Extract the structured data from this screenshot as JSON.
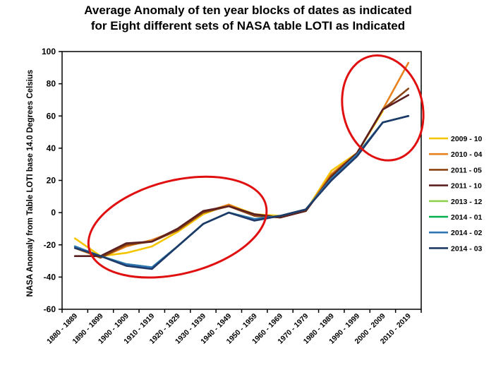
{
  "chart_data": {
    "type": "line",
    "title": [
      "Average Anomaly of ten year blocks of dates as indicated",
      "for Eight different sets of NASA table LOTI as Indicated"
    ],
    "xlabel": "",
    "ylabel": "NASA Anomaly from Table LOTI base 14.0 Degrees Celsius",
    "ylim": [
      -60,
      100
    ],
    "yticks": [
      -60,
      -40,
      -20,
      0,
      20,
      40,
      60,
      80,
      100
    ],
    "grid": false,
    "legend_position": "right",
    "categories": [
      "1880 - 1889",
      "1890 - 1899",
      "1900 - 1909",
      "1910 - 1919",
      "1920 - 1929",
      "1930 - 1939",
      "1940 - 1949",
      "1950 - 1959",
      "1960 - 1969",
      "1970 - 1979",
      "1980 - 1989",
      "1990 - 1999",
      "2000 - 2009",
      "2010 - 2019"
    ],
    "series": [
      {
        "name": "2009 - 10",
        "color": "#F5C500",
        "values": [
          -16,
          -27,
          -25,
          -21,
          -12,
          -1,
          5,
          -1,
          -2,
          1,
          26,
          37,
          63,
          null
        ]
      },
      {
        "name": "2010 - 04",
        "color": "#E8821E",
        "values": [
          -22,
          -28,
          -21,
          -17,
          -11,
          0,
          5,
          -2,
          -3,
          1,
          24,
          37,
          64,
          93
        ]
      },
      {
        "name": "2011 - 05",
        "color": "#8B4513",
        "values": [
          -21,
          -28,
          -20,
          -18,
          -11,
          0,
          4,
          -2,
          -3,
          1,
          23,
          37,
          64,
          77
        ]
      },
      {
        "name": "2011 - 10",
        "color": "#5C1F1F",
        "values": [
          -27,
          -27,
          -19,
          -18,
          -10,
          1,
          4,
          -1,
          -3,
          1,
          22,
          37,
          64,
          73
        ]
      },
      {
        "name": "2013 - 12",
        "color": "#92D050",
        "values": [
          -21,
          -27,
          -32,
          -34,
          -21,
          -7,
          0,
          -4,
          -2,
          2,
          21,
          36,
          56,
          60
        ]
      },
      {
        "name": "2014 - 01",
        "color": "#00B050",
        "values": [
          -21,
          -27,
          -32,
          -34,
          -21,
          -7,
          0,
          -4,
          -2,
          2,
          21,
          36,
          56,
          60
        ]
      },
      {
        "name": "2014 - 02",
        "color": "#2E75B6",
        "values": [
          -21,
          -27,
          -32,
          -34,
          -21,
          -7,
          0,
          -4,
          -2,
          2,
          21,
          36,
          56,
          60
        ]
      },
      {
        "name": "2014 - 03",
        "color": "#1F3A68",
        "values": [
          -22,
          -27,
          -33,
          -35,
          -21,
          -7,
          0,
          -5,
          -2,
          2,
          20,
          35,
          56,
          60
        ]
      }
    ],
    "annotations": [
      {
        "shape": "ellipse",
        "color": "#E01010",
        "x_range": [
          "1890 - 1899",
          "1950 - 1959"
        ],
        "y_range": [
          -38,
          20
        ]
      },
      {
        "shape": "ellipse",
        "color": "#E01010",
        "x_range": [
          "1990 - 1999",
          "2010 - 2019"
        ],
        "y_range": [
          32,
          98
        ]
      }
    ]
  }
}
